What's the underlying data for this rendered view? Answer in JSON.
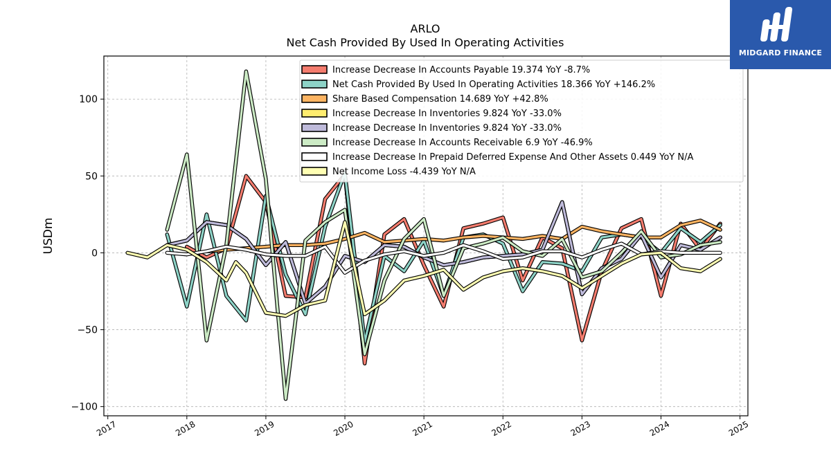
{
  "brand": {
    "name": "MIDGARD FINANCE",
    "bg_color": "#2a59ac"
  },
  "chart_data": {
    "type": "line",
    "title": "ARLO",
    "subtitle": "Net Cash Provided By Used In Operating Activities",
    "xlabel": "",
    "ylabel": "USDm",
    "xlim": [
      2016.95,
      2025.1
    ],
    "ylim": [
      -106,
      128
    ],
    "x_ticks": [
      2017,
      2018,
      2019,
      2020,
      2021,
      2022,
      2023,
      2024,
      2025
    ],
    "y_ticks": [
      -100,
      -50,
      0,
      50,
      100
    ],
    "grid": true,
    "legend_position": "top-right",
    "series": [
      {
        "name": "Increase Decrease In Accounts Payable  19.374 YoY -8.7%",
        "color": "#f47c6e",
        "x": [
          2018.0,
          2018.25,
          2018.5,
          2018.75,
          2019.0,
          2019.25,
          2019.5,
          2019.75,
          2020.0,
          2020.25,
          2020.5,
          2020.75,
          2021.0,
          2021.25,
          2021.5,
          2021.75,
          2022.0,
          2022.25,
          2022.5,
          2022.75,
          2023.0,
          2023.25,
          2023.5,
          2023.75,
          2024.0,
          2024.25,
          2024.5,
          2024.75
        ],
        "values": [
          4,
          -3,
          3,
          50,
          33,
          -28,
          -29,
          35,
          51,
          -72,
          12,
          22,
          -8,
          -35,
          16,
          19,
          23,
          -18,
          10,
          3,
          -57,
          -12,
          16,
          22,
          -28,
          19,
          2,
          19
        ]
      },
      {
        "name": "Net Cash Provided By Used In Operating Activities  18.366 YoY +146.2%",
        "color": "#8dd3c7",
        "x": [
          2017.75,
          2018.0,
          2018.25,
          2018.5,
          2018.75,
          2019.0,
          2019.25,
          2019.5,
          2019.75,
          2020.0,
          2020.25,
          2020.5,
          2020.75,
          2021.0,
          2021.25,
          2021.5,
          2021.75,
          2022.0,
          2022.25,
          2022.5,
          2022.75,
          2023.0,
          2023.25,
          2023.5,
          2023.75,
          2024.0,
          2024.25,
          2024.5,
          2024.75
        ],
        "values": [
          12,
          -35,
          25,
          -28,
          -44,
          37,
          -14,
          -40,
          17,
          52,
          -58,
          -2,
          -12,
          8,
          -28,
          10,
          12,
          6,
          -25,
          -6,
          -7,
          -12,
          10,
          12,
          10,
          0,
          16,
          7,
          18
        ]
      },
      {
        "name": "Share Based Compensation  14.689 YoY +42.8%",
        "color": "#fdb462",
        "x": [
          2018.25,
          2018.5,
          2018.75,
          2019.0,
          2019.25,
          2019.5,
          2019.75,
          2020.0,
          2020.25,
          2020.5,
          2020.75,
          2021.0,
          2021.25,
          2021.5,
          2021.75,
          2022.0,
          2022.25,
          2022.5,
          2022.75,
          2023.0,
          2023.25,
          2023.5,
          2023.75,
          2024.0,
          2024.25,
          2024.5,
          2024.75
        ],
        "values": [
          1,
          2,
          3,
          4,
          5,
          5,
          6,
          9,
          13,
          7,
          8,
          9,
          8,
          10,
          11,
          10,
          9,
          11,
          9,
          17,
          14,
          12,
          10,
          10,
          18,
          21,
          15
        ]
      },
      {
        "name": "Increase Decrease In Inventories  9.824 YoY -33.0%",
        "color": "#ffed6f",
        "x": [
          2017.75,
          2018.0,
          2018.25,
          2018.5,
          2018.75,
          2019.0,
          2019.25,
          2019.5,
          2019.75,
          2020.0,
          2020.25,
          2020.5,
          2020.75,
          2021.0,
          2021.25,
          2021.5,
          2021.75,
          2022.0,
          2022.25,
          2022.5,
          2022.75,
          2023.0,
          2023.25,
          2023.5,
          2023.75,
          2024.0,
          2024.25,
          2024.5,
          2024.75
        ],
        "values": [
          5,
          8,
          20,
          18,
          9,
          -8,
          7,
          -33,
          -22,
          -2,
          -6,
          5,
          4,
          -3,
          -8,
          -6,
          -3,
          -2,
          -1,
          2,
          33,
          -27,
          -10,
          -4,
          12,
          -16,
          5,
          2,
          10
        ]
      },
      {
        "name": "Increase Decrease In Inventories  9.824 YoY -33.0%",
        "color": "#bebada",
        "x": [
          2017.75,
          2018.0,
          2018.25,
          2018.5,
          2018.75,
          2019.0,
          2019.25,
          2019.5,
          2019.75,
          2020.0,
          2020.25,
          2020.5,
          2020.75,
          2021.0,
          2021.25,
          2021.5,
          2021.75,
          2022.0,
          2022.25,
          2022.5,
          2022.75,
          2023.0,
          2023.25,
          2023.5,
          2023.75,
          2024.0,
          2024.25,
          2024.5,
          2024.75
        ],
        "values": [
          5,
          8,
          20,
          18,
          9,
          -8,
          7,
          -33,
          -22,
          -2,
          -6,
          5,
          4,
          -3,
          -8,
          -6,
          -3,
          -2,
          -1,
          2,
          33,
          -27,
          -10,
          -4,
          12,
          -16,
          5,
          2,
          10
        ]
      },
      {
        "name": "Increase Decrease In Accounts Receivable  6.9 YoY -46.9%",
        "color": "#ccebc5",
        "x": [
          2017.75,
          2018.0,
          2018.25,
          2018.5,
          2018.75,
          2019.0,
          2019.25,
          2019.5,
          2019.75,
          2020.0,
          2020.25,
          2020.5,
          2020.75,
          2021.0,
          2021.25,
          2021.5,
          2021.75,
          2022.0,
          2022.25,
          2022.5,
          2022.75,
          2023.0,
          2023.25,
          2023.5,
          2023.75,
          2024.0,
          2024.25,
          2024.5,
          2024.75
        ],
        "values": [
          15,
          64,
          -57,
          5,
          118,
          48,
          -95,
          8,
          20,
          28,
          -66,
          -18,
          9,
          22,
          -28,
          3,
          6,
          10,
          1,
          -2,
          9,
          -16,
          -12,
          0,
          14,
          -3,
          -1,
          5,
          7
        ]
      },
      {
        "name": "Increase Decrease In Prepaid Deferred Expense And Other Assets  0.449 YoY N/A",
        "color": "#ffffff",
        "x": [
          2017.75,
          2018.0,
          2018.25,
          2018.5,
          2018.75,
          2019.0,
          2019.25,
          2019.5,
          2019.75,
          2020.0,
          2020.25,
          2020.5,
          2020.75,
          2021.0,
          2021.25,
          2021.5,
          2021.75,
          2022.0,
          2022.25,
          2022.5,
          2022.75,
          2023.0,
          2023.25,
          2023.5,
          2023.75,
          2024.0,
          2024.25,
          2024.5,
          2024.75
        ],
        "values": [
          0,
          -1,
          1,
          4,
          2,
          -1,
          -2,
          -2,
          4,
          -13,
          -5,
          -1,
          1,
          -2,
          0,
          5,
          1,
          -4,
          -3,
          1,
          1,
          -3,
          2,
          6,
          -1,
          1,
          0,
          0,
          0
        ]
      },
      {
        "name": "Net Income Loss  -4.439 YoY N/A",
        "color": "#ffffb3",
        "x": [
          2017.25,
          2017.5,
          2017.75,
          2018.0,
          2018.25,
          2018.5,
          2018.62,
          2018.75,
          2019.0,
          2019.25,
          2019.5,
          2019.75,
          2020.0,
          2020.25,
          2020.5,
          2020.75,
          2021.0,
          2021.25,
          2021.5,
          2021.75,
          2022.0,
          2022.25,
          2022.5,
          2022.75,
          2023.0,
          2023.25,
          2023.5,
          2023.75,
          2024.0,
          2024.25,
          2024.5,
          2024.75
        ],
        "values": [
          0,
          -3,
          5,
          2,
          -6,
          -18,
          -6,
          -13,
          -39,
          -41,
          -34,
          -31,
          20,
          -40,
          -31,
          -18,
          -15,
          -11,
          -24,
          -16,
          -12,
          -10,
          -12,
          -15,
          -23,
          -15,
          -7,
          -1,
          0,
          -10,
          -12,
          -4
        ]
      }
    ]
  }
}
